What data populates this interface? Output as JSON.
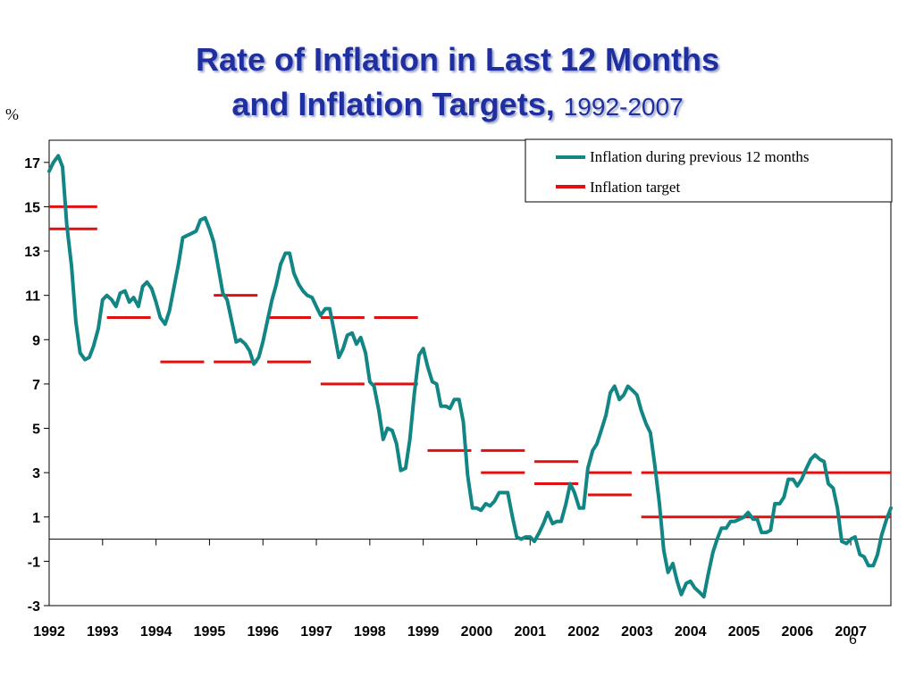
{
  "title": {
    "line1": "Rate of Inflation in Last 12 Months",
    "line2": "and Inflation Targets,",
    "years": "1992-2007"
  },
  "slide_number": "6",
  "colors": {
    "title": "#1f2f9f",
    "inflation": "#128585",
    "target": "#e01010"
  },
  "chart_data": {
    "type": "line",
    "ylabel": "%",
    "ylim": [
      -3,
      18
    ],
    "yticks": [
      17,
      15,
      13,
      11,
      9,
      7,
      5,
      3,
      1,
      -1,
      -3
    ],
    "xlim": [
      1992,
      2007.75
    ],
    "xticks": [
      "1992",
      "1993",
      "1994",
      "1995",
      "1996",
      "1997",
      "1998",
      "1999",
      "2000",
      "2001",
      "2002",
      "2003",
      "2004",
      "2005",
      "2006",
      "2007"
    ],
    "legend_position": "top-right",
    "series": [
      {
        "name": "Inflation during previous 12 months",
        "points": [
          [
            1992.0,
            16.6
          ],
          [
            1992.08,
            17.0
          ],
          [
            1992.17,
            17.3
          ],
          [
            1992.25,
            16.8
          ],
          [
            1992.33,
            14.2
          ],
          [
            1992.42,
            12.3
          ],
          [
            1992.5,
            9.8
          ],
          [
            1992.58,
            8.4
          ],
          [
            1992.67,
            8.1
          ],
          [
            1992.75,
            8.2
          ],
          [
            1992.83,
            8.7
          ],
          [
            1992.92,
            9.5
          ],
          [
            1993.0,
            10.8
          ],
          [
            1993.08,
            11.0
          ],
          [
            1993.17,
            10.8
          ],
          [
            1993.25,
            10.5
          ],
          [
            1993.33,
            11.1
          ],
          [
            1993.42,
            11.2
          ],
          [
            1993.5,
            10.7
          ],
          [
            1993.58,
            10.9
          ],
          [
            1993.67,
            10.5
          ],
          [
            1993.75,
            11.4
          ],
          [
            1993.83,
            11.6
          ],
          [
            1993.92,
            11.3
          ],
          [
            1994.0,
            10.7
          ],
          [
            1994.08,
            10.0
          ],
          [
            1994.17,
            9.7
          ],
          [
            1994.25,
            10.3
          ],
          [
            1994.33,
            11.3
          ],
          [
            1994.42,
            12.4
          ],
          [
            1994.5,
            13.6
          ],
          [
            1994.58,
            13.7
          ],
          [
            1994.67,
            13.8
          ],
          [
            1994.75,
            13.9
          ],
          [
            1994.83,
            14.4
          ],
          [
            1994.92,
            14.5
          ],
          [
            1995.0,
            14.0
          ],
          [
            1995.08,
            13.4
          ],
          [
            1995.17,
            12.2
          ],
          [
            1995.25,
            11.1
          ],
          [
            1995.33,
            10.8
          ],
          [
            1995.42,
            9.8
          ],
          [
            1995.5,
            8.9
          ],
          [
            1995.58,
            9.0
          ],
          [
            1995.67,
            8.8
          ],
          [
            1995.75,
            8.5
          ],
          [
            1995.83,
            7.9
          ],
          [
            1995.92,
            8.2
          ],
          [
            1996.0,
            8.9
          ],
          [
            1996.08,
            9.8
          ],
          [
            1996.17,
            10.8
          ],
          [
            1996.25,
            11.5
          ],
          [
            1996.33,
            12.4
          ],
          [
            1996.42,
            12.9
          ],
          [
            1996.5,
            12.9
          ],
          [
            1996.58,
            12.0
          ],
          [
            1996.67,
            11.5
          ],
          [
            1996.75,
            11.2
          ],
          [
            1996.83,
            11.0
          ],
          [
            1996.92,
            10.9
          ],
          [
            1997.0,
            10.5
          ],
          [
            1997.08,
            10.1
          ],
          [
            1997.17,
            10.4
          ],
          [
            1997.25,
            10.4
          ],
          [
            1997.33,
            9.4
          ],
          [
            1997.42,
            8.2
          ],
          [
            1997.5,
            8.6
          ],
          [
            1997.58,
            9.2
          ],
          [
            1997.67,
            9.3
          ],
          [
            1997.75,
            8.8
          ],
          [
            1997.83,
            9.1
          ],
          [
            1997.92,
            8.4
          ],
          [
            1998.0,
            7.1
          ],
          [
            1998.08,
            6.9
          ],
          [
            1998.17,
            5.8
          ],
          [
            1998.25,
            4.5
          ],
          [
            1998.33,
            5.0
          ],
          [
            1998.42,
            4.9
          ],
          [
            1998.5,
            4.3
          ],
          [
            1998.58,
            3.1
          ],
          [
            1998.67,
            3.2
          ],
          [
            1998.75,
            4.5
          ],
          [
            1998.83,
            6.5
          ],
          [
            1998.92,
            8.3
          ],
          [
            1999.0,
            8.6
          ],
          [
            1999.08,
            7.8
          ],
          [
            1999.17,
            7.1
          ],
          [
            1999.25,
            7.0
          ],
          [
            1999.33,
            6.0
          ],
          [
            1999.42,
            6.0
          ],
          [
            1999.5,
            5.9
          ],
          [
            1999.58,
            6.3
          ],
          [
            1999.67,
            6.3
          ],
          [
            1999.75,
            5.3
          ],
          [
            1999.83,
            2.9
          ],
          [
            1999.92,
            1.4
          ],
          [
            2000.0,
            1.4
          ],
          [
            2000.08,
            1.3
          ],
          [
            2000.17,
            1.6
          ],
          [
            2000.25,
            1.5
          ],
          [
            2000.33,
            1.7
          ],
          [
            2000.42,
            2.1
          ],
          [
            2000.5,
            2.1
          ],
          [
            2000.58,
            2.1
          ],
          [
            2000.67,
            1.0
          ],
          [
            2000.75,
            0.1
          ],
          [
            2000.83,
            0.0
          ],
          [
            2000.92,
            0.1
          ],
          [
            2001.0,
            0.1
          ],
          [
            2001.08,
            -0.1
          ],
          [
            2001.17,
            0.3
          ],
          [
            2001.25,
            0.7
          ],
          [
            2001.33,
            1.2
          ],
          [
            2001.42,
            0.7
          ],
          [
            2001.5,
            0.8
          ],
          [
            2001.58,
            0.8
          ],
          [
            2001.67,
            1.6
          ],
          [
            2001.75,
            2.5
          ],
          [
            2001.83,
            2.1
          ],
          [
            2001.92,
            1.4
          ],
          [
            2002.0,
            1.4
          ],
          [
            2002.08,
            3.2
          ],
          [
            2002.17,
            4.0
          ],
          [
            2002.25,
            4.3
          ],
          [
            2002.33,
            4.9
          ],
          [
            2002.42,
            5.6
          ],
          [
            2002.5,
            6.6
          ],
          [
            2002.58,
            6.9
          ],
          [
            2002.67,
            6.3
          ],
          [
            2002.75,
            6.5
          ],
          [
            2002.83,
            6.9
          ],
          [
            2002.92,
            6.7
          ],
          [
            2003.0,
            6.5
          ],
          [
            2003.08,
            5.8
          ],
          [
            2003.17,
            5.2
          ],
          [
            2003.25,
            4.8
          ],
          [
            2003.33,
            3.4
          ],
          [
            2003.42,
            1.6
          ],
          [
            2003.5,
            -0.5
          ],
          [
            2003.58,
            -1.5
          ],
          [
            2003.67,
            -1.1
          ],
          [
            2003.75,
            -1.9
          ],
          [
            2003.83,
            -2.5
          ],
          [
            2003.92,
            -2.0
          ],
          [
            2004.0,
            -1.9
          ],
          [
            2004.08,
            -2.2
          ],
          [
            2004.17,
            -2.4
          ],
          [
            2004.25,
            -2.6
          ],
          [
            2004.33,
            -1.6
          ],
          [
            2004.42,
            -0.6
          ],
          [
            2004.5,
            0.0
          ],
          [
            2004.58,
            0.5
          ],
          [
            2004.67,
            0.5
          ],
          [
            2004.75,
            0.8
          ],
          [
            2004.83,
            0.8
          ],
          [
            2004.92,
            0.9
          ],
          [
            2005.0,
            1.0
          ],
          [
            2005.08,
            1.2
          ],
          [
            2005.17,
            0.9
          ],
          [
            2005.25,
            0.9
          ],
          [
            2005.33,
            0.3
          ],
          [
            2005.42,
            0.3
          ],
          [
            2005.5,
            0.4
          ],
          [
            2005.58,
            1.6
          ],
          [
            2005.67,
            1.6
          ],
          [
            2005.75,
            1.9
          ],
          [
            2005.83,
            2.7
          ],
          [
            2005.92,
            2.7
          ],
          [
            2006.0,
            2.4
          ],
          [
            2006.08,
            2.7
          ],
          [
            2006.17,
            3.2
          ],
          [
            2006.25,
            3.6
          ],
          [
            2006.33,
            3.8
          ],
          [
            2006.42,
            3.6
          ],
          [
            2006.5,
            3.5
          ],
          [
            2006.58,
            2.5
          ],
          [
            2006.67,
            2.3
          ],
          [
            2006.75,
            1.4
          ],
          [
            2006.83,
            -0.1
          ],
          [
            2006.92,
            -0.2
          ],
          [
            2007.0,
            0.0
          ],
          [
            2007.08,
            0.1
          ],
          [
            2007.17,
            -0.7
          ],
          [
            2007.25,
            -0.8
          ],
          [
            2007.33,
            -1.2
          ],
          [
            2007.42,
            -1.2
          ],
          [
            2007.5,
            -0.7
          ],
          [
            2007.58,
            0.2
          ],
          [
            2007.67,
            0.9
          ],
          [
            2007.75,
            1.4
          ]
        ]
      },
      {
        "name": "Inflation target",
        "segments": [
          {
            "x": [
              1992.0,
              1992.9
            ],
            "y": 15
          },
          {
            "x": [
              1992.0,
              1992.9
            ],
            "y": 14
          },
          {
            "x": [
              1993.08,
              1993.9
            ],
            "y": 10
          },
          {
            "x": [
              1994.08,
              1994.9
            ],
            "y": 8
          },
          {
            "x": [
              1995.08,
              1995.9
            ],
            "y": 8
          },
          {
            "x": [
              1995.08,
              1995.9
            ],
            "y": 11
          },
          {
            "x": [
              1996.08,
              1996.9
            ],
            "y": 8
          },
          {
            "x": [
              1996.08,
              1996.9
            ],
            "y": 10
          },
          {
            "x": [
              1997.08,
              1997.9
            ],
            "y": 10
          },
          {
            "x": [
              1997.08,
              1997.9
            ],
            "y": 7
          },
          {
            "x": [
              1998.08,
              1998.9
            ],
            "y": 10
          },
          {
            "x": [
              1998.08,
              1998.9
            ],
            "y": 7
          },
          {
            "x": [
              1999.08,
              1999.9
            ],
            "y": 4
          },
          {
            "x": [
              2000.08,
              2000.9
            ],
            "y": 4
          },
          {
            "x": [
              2000.08,
              2000.9
            ],
            "y": 3
          },
          {
            "x": [
              2001.08,
              2001.9
            ],
            "y": 3.5
          },
          {
            "x": [
              2001.08,
              2001.9
            ],
            "y": 2.5
          },
          {
            "x": [
              2002.08,
              2002.9
            ],
            "y": 3
          },
          {
            "x": [
              2002.08,
              2002.9
            ],
            "y": 2
          },
          {
            "x": [
              2003.08,
              2007.75
            ],
            "y": 3
          },
          {
            "x": [
              2003.08,
              2007.75
            ],
            "y": 1
          }
        ]
      }
    ]
  }
}
